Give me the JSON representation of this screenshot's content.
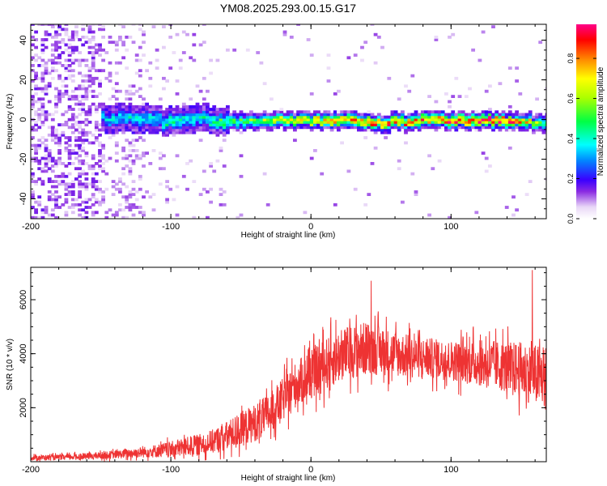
{
  "chart_data": [
    {
      "type": "heatmap",
      "title": "YM08.2025.293.00.15.G17",
      "xlabel": "Height of straight line (km)",
      "ylabel": "Frequency (Hz)",
      "xlim": [
        -200,
        168
      ],
      "ylim": [
        -50,
        48
      ],
      "xticks": [
        -200,
        -100,
        0,
        100
      ],
      "yticks": [
        -40,
        -20,
        0,
        20,
        40
      ],
      "colorbar": {
        "label": "Normalized spectral amplitude",
        "range": [
          0,
          0.97
        ],
        "ticks": [
          0.0,
          0.2,
          0.4,
          0.6,
          0.8
        ]
      },
      "ridge": {
        "description": "Doppler frequency ridge",
        "x": [
          -150,
          -120,
          -100,
          -80,
          -60,
          -40,
          -20,
          0,
          20,
          40,
          60,
          80,
          100,
          120,
          140,
          160,
          168
        ],
        "freq_hz": [
          0,
          0,
          -2,
          0,
          -2,
          -1,
          -1,
          -1,
          -1,
          -2,
          -2,
          -1,
          -1,
          -1,
          -1,
          -2,
          -3
        ],
        "peak_amplitude": [
          0.35,
          0.4,
          0.45,
          0.4,
          0.55,
          0.6,
          0.7,
          0.75,
          0.8,
          0.85,
          0.85,
          0.85,
          0.9,
          0.95,
          0.9,
          0.6,
          0.5
        ]
      }
    },
    {
      "type": "line",
      "title": "",
      "xlabel": "Height of straight line (km)",
      "ylabel": "SNR (10 * v/v)",
      "xlim": [
        -200,
        168
      ],
      "ylim": [
        0,
        7200
      ],
      "xticks": [
        -200,
        -100,
        0,
        100
      ],
      "yticks": [
        2000,
        4000,
        6000
      ],
      "series": [
        {
          "name": "SNR",
          "color": "#ee3333",
          "x": [
            -200,
            -180,
            -160,
            -140,
            -120,
            -100,
            -90,
            -80,
            -70,
            -60,
            -50,
            -40,
            -30,
            -20,
            -10,
            0,
            10,
            20,
            30,
            40,
            50,
            60,
            70,
            80,
            90,
            100,
            110,
            120,
            130,
            140,
            150,
            160,
            168
          ],
          "y": [
            150,
            160,
            200,
            260,
            350,
            450,
            550,
            620,
            750,
            950,
            1200,
            1450,
            1750,
            2300,
            2900,
            3200,
            3600,
            3900,
            4100,
            4200,
            4100,
            4000,
            3900,
            3850,
            3800,
            3750,
            3700,
            3650,
            3600,
            3500,
            3400,
            3200,
            3100
          ],
          "noise_amplitude": [
            100,
            100,
            120,
            150,
            200,
            300,
            350,
            400,
            450,
            550,
            650,
            700,
            750,
            800,
            850,
            900,
            950,
            1000,
            1000,
            1000,
            900,
            850,
            800,
            750,
            750,
            750,
            800,
            850,
            900,
            950,
            1050,
            1150,
            1200
          ]
        }
      ],
      "annotations": [
        {
          "x": 43,
          "y": 6700,
          "text": "spike"
        },
        {
          "x": 158,
          "y": 7100,
          "text": "spike"
        }
      ]
    }
  ]
}
